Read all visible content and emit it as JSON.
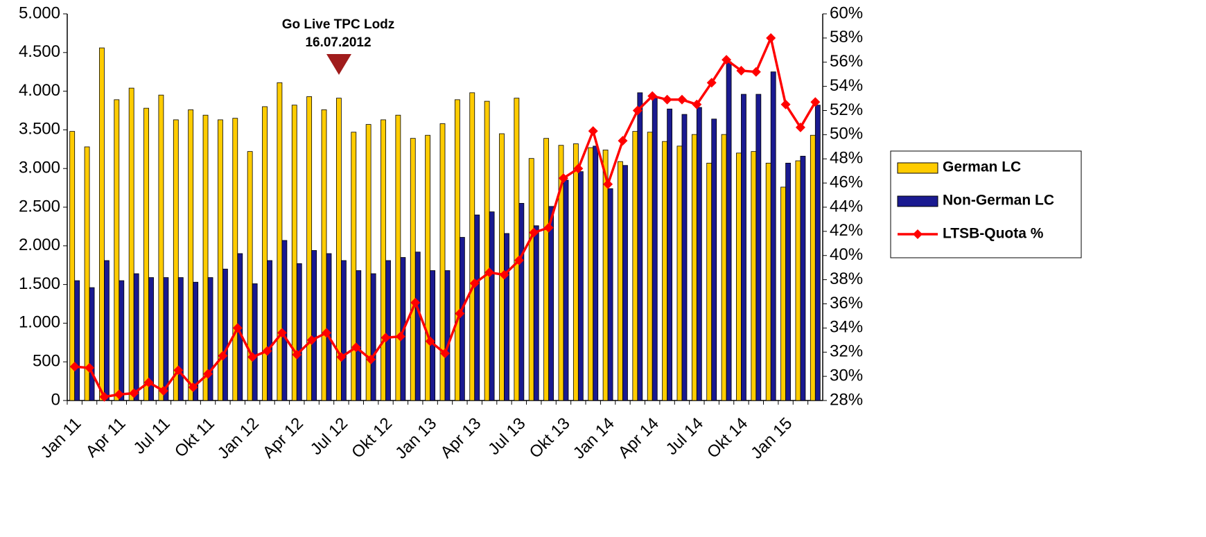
{
  "chart_data": {
    "type": "bar",
    "annotation": [
      "Go Live TPC Lodz",
      "16.07.2012"
    ],
    "categories": [
      "Jan 11",
      null,
      null,
      "Apr 11",
      null,
      null,
      "Jul 11",
      null,
      null,
      "Okt 11",
      null,
      null,
      "Jan 12",
      null,
      null,
      "Apr 12",
      null,
      null,
      "Jul 12",
      null,
      null,
      "Okt 12",
      null,
      null,
      "Jan 13",
      null,
      null,
      "Apr 13",
      null,
      null,
      "Jul 13",
      null,
      null,
      "Okt 13",
      null,
      null,
      "Jan 14",
      null,
      null,
      "Apr 14",
      null,
      null,
      "Jul 14",
      null,
      null,
      "Okt 14",
      null,
      null,
      "Jan 15",
      null,
      null
    ],
    "series": [
      {
        "name": "German LC",
        "color": "#ffcc00",
        "type": "bar",
        "values": [
          3480,
          3280,
          4560,
          3890,
          4040,
          3780,
          3950,
          3630,
          3760,
          3690,
          3630,
          3650,
          3220,
          3800,
          4110,
          3820,
          3930,
          3760,
          3910,
          3470,
          3570,
          3630,
          3690,
          3390,
          3430,
          3580,
          3890,
          3980,
          3870,
          3450,
          3910,
          3130,
          3390,
          3300,
          3320,
          3270,
          3240,
          3090,
          3480,
          3470,
          3350,
          3290,
          3440,
          3070,
          3440,
          3200,
          3220,
          3070,
          2760,
          3100,
          3430
        ]
      },
      {
        "name": "Non-German LC",
        "color": "#1a1a90",
        "type": "bar",
        "values": [
          1550,
          1460,
          1810,
          1550,
          1640,
          1590,
          1590,
          1590,
          1530,
          1590,
          1700,
          1900,
          1510,
          1810,
          2070,
          1770,
          1940,
          1900,
          1810,
          1680,
          1640,
          1810,
          1850,
          1920,
          1680,
          1680,
          2110,
          2400,
          2440,
          2160,
          2550,
          2260,
          2510,
          2850,
          2960,
          3290,
          2740,
          3040,
          3980,
          3930,
          3770,
          3700,
          3790,
          3640,
          4380,
          3960,
          3960,
          4250,
          3070,
          3160,
          3820
        ]
      },
      {
        "name": "LTSB-Quota %",
        "color": "#ff0000",
        "type": "line",
        "axis": "y2",
        "values": [
          30.8,
          30.7,
          28.3,
          28.5,
          28.6,
          29.5,
          28.8,
          30.5,
          29.1,
          30.2,
          31.7,
          34.0,
          31.6,
          32.1,
          33.6,
          31.8,
          33.0,
          33.6,
          31.6,
          32.4,
          31.4,
          33.2,
          33.3,
          36.1,
          32.9,
          31.9,
          35.2,
          37.7,
          38.6,
          38.4,
          39.6,
          41.9,
          42.3,
          46.4,
          47.2,
          50.3,
          45.9,
          49.5,
          52.0,
          53.2,
          52.9,
          52.9,
          52.5,
          54.3,
          56.2,
          55.3,
          55.2,
          58.0,
          52.5,
          50.6,
          52.7
        ]
      }
    ],
    "ylim": [
      0,
      5000
    ],
    "yticks": [
      0,
      {
        "value": 500,
        "label": "500"
      },
      {
        "value": 1000,
        "label": "1.000"
      },
      {
        "value": 1500,
        "label": "1.500"
      },
      {
        "value": 2000,
        "label": "2.000"
      },
      {
        "value": 2500,
        "label": "2.500"
      },
      {
        "value": 3000,
        "label": "3.000"
      },
      {
        "value": 3500,
        "label": "3.500"
      },
      {
        "value": 4000,
        "label": "4.000"
      },
      {
        "value": 4500,
        "label": "4.500"
      },
      {
        "value": 5000,
        "label": "5.000"
      }
    ],
    "y2lim": [
      28,
      60
    ],
    "y2ticks": [
      {
        "value": 28,
        "label": "28%"
      },
      {
        "value": 30,
        "label": "30%"
      },
      {
        "value": 32,
        "label": "32%"
      },
      {
        "value": 34,
        "label": "34%"
      },
      {
        "value": 36,
        "label": "36%"
      },
      {
        "value": 38,
        "label": "38%"
      },
      {
        "value": 40,
        "label": "40%"
      },
      {
        "value": 42,
        "label": "42%"
      },
      {
        "value": 44,
        "label": "44%"
      },
      {
        "value": 46,
        "label": "46%"
      },
      {
        "value": 48,
        "label": "48%"
      },
      {
        "value": 50,
        "label": "50%"
      },
      {
        "value": 52,
        "label": "52%"
      },
      {
        "value": 54,
        "label": "54%"
      },
      {
        "value": 56,
        "label": "56%"
      },
      {
        "value": 58,
        "label": "58%"
      },
      {
        "value": 60,
        "label": "60%"
      }
    ],
    "grid": false,
    "legend": "right"
  }
}
